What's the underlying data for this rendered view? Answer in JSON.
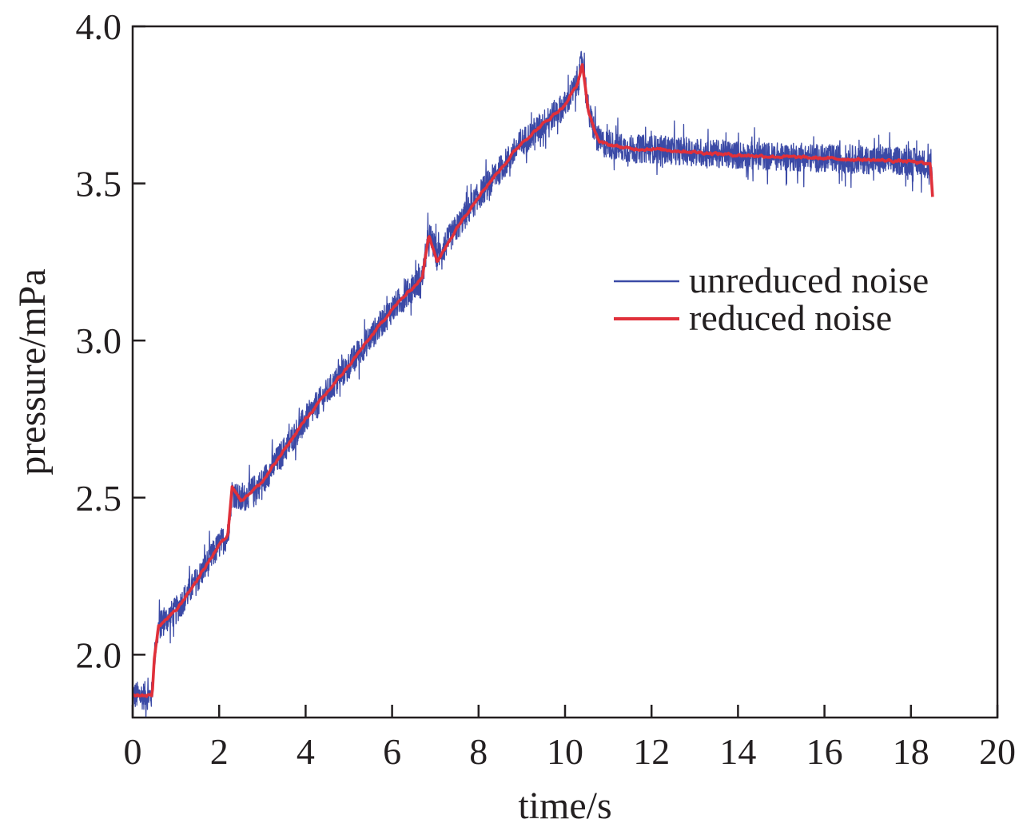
{
  "chart_data": {
    "type": "line",
    "title": "",
    "xlabel": "time/s",
    "ylabel": "pressure/mPa",
    "xlim": [
      0,
      20
    ],
    "ylim": [
      1.8,
      4.0
    ],
    "x_ticks": [
      "0",
      "2",
      "4",
      "6",
      "8",
      "10",
      "12",
      "14",
      "16",
      "18",
      "20"
    ],
    "y_ticks": [
      "2.0",
      "2.5",
      "3.0",
      "3.5",
      "4.0"
    ],
    "grid": false,
    "legend_position": "right",
    "series": [
      {
        "name": "unreduced noise",
        "color": "#3b4aa6",
        "style": "noisy",
        "noise_amplitude": 0.045,
        "x": [
          0.0,
          0.45,
          0.5,
          0.6,
          1.0,
          1.5,
          2.0,
          2.2,
          2.3,
          2.5,
          3.0,
          4.0,
          5.0,
          6.0,
          6.7,
          6.85,
          7.05,
          7.5,
          8.0,
          9.0,
          10.0,
          10.3,
          10.4,
          10.55,
          10.8,
          11.5,
          12.0,
          14.0,
          16.0,
          18.0,
          18.45,
          18.5
        ],
        "y": [
          1.87,
          1.87,
          1.99,
          2.09,
          2.14,
          2.24,
          2.35,
          2.38,
          2.52,
          2.49,
          2.55,
          2.75,
          2.92,
          3.1,
          3.2,
          3.34,
          3.27,
          3.36,
          3.46,
          3.63,
          3.75,
          3.82,
          3.9,
          3.72,
          3.63,
          3.61,
          3.61,
          3.59,
          3.58,
          3.57,
          3.56,
          3.48
        ]
      },
      {
        "name": "reduced noise",
        "color": "#e0303a",
        "style": "smooth",
        "noise_amplitude": 0.008,
        "x": [
          0.0,
          0.45,
          0.5,
          0.6,
          1.0,
          1.5,
          2.0,
          2.2,
          2.3,
          2.5,
          3.0,
          4.0,
          5.0,
          6.0,
          6.7,
          6.85,
          7.05,
          7.5,
          8.0,
          9.0,
          10.0,
          10.3,
          10.4,
          10.55,
          10.8,
          11.5,
          12.0,
          14.0,
          16.0,
          18.0,
          18.45,
          18.5
        ],
        "y": [
          1.87,
          1.87,
          1.99,
          2.09,
          2.14,
          2.24,
          2.35,
          2.38,
          2.54,
          2.49,
          2.55,
          2.75,
          2.92,
          3.1,
          3.2,
          3.34,
          3.25,
          3.36,
          3.46,
          3.63,
          3.75,
          3.82,
          3.88,
          3.72,
          3.63,
          3.61,
          3.61,
          3.59,
          3.58,
          3.57,
          3.56,
          3.46
        ]
      }
    ]
  }
}
